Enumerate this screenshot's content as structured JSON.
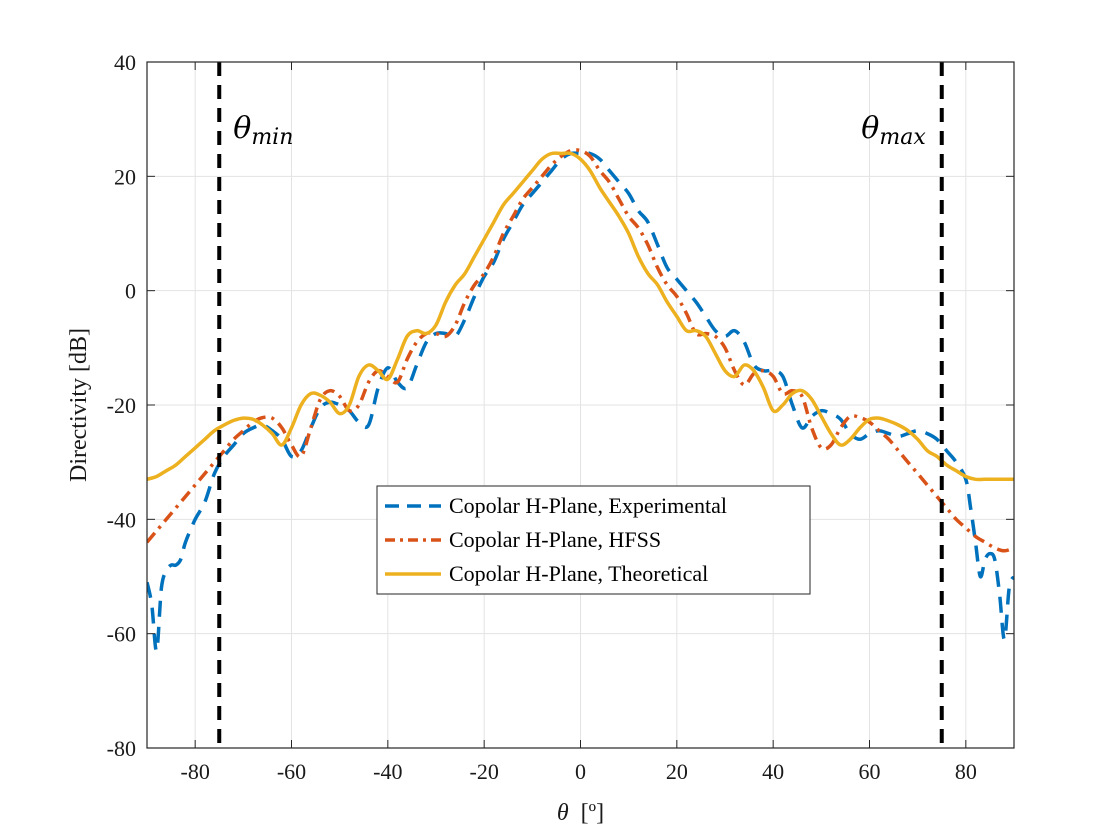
{
  "chart_data": {
    "type": "line",
    "xlabel_symbol": "θ",
    "xlabel_unit": "[º]",
    "ylabel": "Directivity [dB]",
    "xlim": [
      -90,
      90
    ],
    "ylim": [
      -80,
      40
    ],
    "xticks": [
      -80,
      -60,
      -40,
      -20,
      0,
      20,
      40,
      60,
      80
    ],
    "yticks": [
      -80,
      -60,
      -40,
      -20,
      0,
      20,
      40
    ],
    "grid": true,
    "legend_position": "center-bottom",
    "vlines": [
      {
        "x": -75,
        "label_base": "θ",
        "label_sub": "min"
      },
      {
        "x": 75,
        "label_base": "θ",
        "label_sub": "max"
      }
    ],
    "series": [
      {
        "name": "Copolar H-Plane, Experimental",
        "color": "#0072BD",
        "style": "dashed",
        "x": [
          -90,
          -89,
          -88,
          -87,
          -86,
          -85,
          -84,
          -83,
          -82,
          -80,
          -78,
          -76,
          -74,
          -72,
          -70,
          -68,
          -66,
          -64,
          -62,
          -60,
          -58,
          -56,
          -54,
          -52,
          -50,
          -48,
          -46,
          -44,
          -42,
          -40,
          -38,
          -36,
          -34,
          -32,
          -30,
          -28,
          -26,
          -24,
          -22,
          -20,
          -18,
          -16,
          -14,
          -12,
          -10,
          -8,
          -6,
          -4,
          -2,
          0,
          2,
          4,
          6,
          8,
          10,
          12,
          14,
          16,
          18,
          20,
          22,
          24,
          26,
          28,
          30,
          32,
          34,
          36,
          38,
          40,
          42,
          44,
          46,
          48,
          50,
          52,
          54,
          56,
          58,
          60,
          62,
          64,
          66,
          68,
          70,
          72,
          74,
          76,
          78,
          80,
          81,
          82,
          83,
          84,
          85,
          86,
          87,
          88,
          89,
          90
        ],
        "y": [
          -51,
          -55,
          -63,
          -52,
          -49,
          -48,
          -48,
          -47,
          -44,
          -40,
          -37,
          -32,
          -29,
          -27,
          -25,
          -24,
          -23.5,
          -24.5,
          -26,
          -29,
          -28,
          -24,
          -20.5,
          -19.5,
          -20,
          -21,
          -23,
          -23.5,
          -17,
          -13.5,
          -16,
          -17,
          -13,
          -9,
          -7.5,
          -7.5,
          -8,
          -5,
          -1,
          2.5,
          5,
          9,
          12,
          15,
          17,
          19,
          21,
          23,
          24,
          24,
          24,
          23,
          21,
          19,
          17,
          14,
          12,
          8,
          4,
          2,
          0,
          -2,
          -4.5,
          -7,
          -8,
          -7,
          -9,
          -13,
          -14,
          -14,
          -15,
          -20,
          -24,
          -22,
          -21,
          -21.5,
          -22.5,
          -25,
          -26,
          -25,
          -24.5,
          -25,
          -25.5,
          -25,
          -24.5,
          -25,
          -26,
          -28,
          -30,
          -33,
          -38,
          -44,
          -50,
          -47,
          -46,
          -47,
          -53,
          -61,
          -52,
          -50
        ]
      },
      {
        "name": "Copolar H-Plane, HFSS",
        "color": "#D95319",
        "style": "dashdot",
        "x": [
          -90,
          -88,
          -86,
          -84,
          -82,
          -80,
          -78,
          -76,
          -74,
          -72,
          -70,
          -68,
          -66,
          -64,
          -62,
          -60,
          -58,
          -56,
          -54,
          -52,
          -50,
          -48,
          -46,
          -44,
          -42,
          -40,
          -38,
          -36,
          -34,
          -32,
          -30,
          -28,
          -26,
          -24,
          -22,
          -20,
          -18,
          -16,
          -14,
          -12,
          -10,
          -8,
          -6,
          -4,
          -2,
          0,
          2,
          4,
          6,
          8,
          10,
          12,
          14,
          16,
          18,
          20,
          22,
          24,
          26,
          28,
          30,
          32,
          34,
          36,
          38,
          40,
          42,
          44,
          46,
          48,
          50,
          52,
          54,
          56,
          58,
          60,
          62,
          64,
          66,
          68,
          70,
          72,
          74,
          76,
          78,
          80,
          82,
          84,
          86,
          88,
          90
        ],
        "y": [
          -44,
          -42,
          -40,
          -38,
          -36,
          -34,
          -32,
          -30,
          -28,
          -26,
          -24.5,
          -23,
          -22.2,
          -22.3,
          -24,
          -27,
          -29,
          -24,
          -19,
          -17.5,
          -18.5,
          -21,
          -20,
          -16,
          -14,
          -15,
          -16,
          -12,
          -9,
          -7.5,
          -7.5,
          -8,
          -6,
          -2,
          1,
          3,
          6,
          10,
          13,
          16,
          18,
          20,
          22,
          23.5,
          24.5,
          24.5,
          23.5,
          21,
          19,
          16,
          13,
          11,
          8,
          4,
          1,
          -1,
          -4,
          -7.5,
          -7.5,
          -8,
          -10,
          -14,
          -16.5,
          -14.5,
          -14,
          -15,
          -18,
          -17.5,
          -18.5,
          -24,
          -27.5,
          -27,
          -24,
          -22,
          -22.2,
          -23,
          -24.5,
          -26,
          -28,
          -30,
          -32,
          -34,
          -36,
          -38,
          -40,
          -41.5,
          -43,
          -44,
          -45,
          -45.5,
          -45
        ]
      },
      {
        "name": "Copolar H-Plane, Theoretical",
        "color": "#EDB120",
        "style": "solid",
        "x": [
          -90,
          -88,
          -86,
          -84,
          -82,
          -80,
          -78,
          -76,
          -74,
          -72,
          -70,
          -68,
          -66,
          -64,
          -62,
          -60,
          -58,
          -56,
          -54,
          -52,
          -50,
          -48,
          -46,
          -44,
          -42,
          -40,
          -38,
          -36,
          -34,
          -32,
          -30,
          -28,
          -26,
          -24,
          -22,
          -20,
          -18,
          -16,
          -14,
          -12,
          -10,
          -8,
          -6,
          -4,
          -2,
          0,
          2,
          4,
          6,
          8,
          10,
          12,
          14,
          16,
          18,
          20,
          22,
          24,
          26,
          28,
          30,
          32,
          34,
          36,
          38,
          40,
          42,
          44,
          46,
          48,
          50,
          52,
          54,
          56,
          58,
          60,
          62,
          64,
          66,
          68,
          70,
          72,
          74,
          76,
          78,
          80,
          82,
          84,
          86,
          88,
          90
        ],
        "y": [
          -33,
          -32.5,
          -31.5,
          -30.5,
          -29,
          -27.5,
          -26,
          -24.5,
          -23.5,
          -22.7,
          -22.3,
          -22.5,
          -23.5,
          -25,
          -27,
          -24,
          -20,
          -18,
          -18.3,
          -19.5,
          -21.5,
          -20,
          -15,
          -13,
          -14,
          -15.5,
          -12,
          -8,
          -7,
          -7.5,
          -6,
          -2,
          1,
          3,
          6,
          9,
          12,
          15,
          17,
          19,
          21,
          23,
          24,
          24,
          24,
          23,
          21,
          18,
          15.5,
          13,
          10,
          6,
          3,
          1,
          -2,
          -4.5,
          -7,
          -7,
          -8,
          -11,
          -14,
          -15,
          -13,
          -14,
          -17,
          -21,
          -20,
          -18,
          -17.5,
          -19,
          -22,
          -25,
          -27,
          -26,
          -24,
          -22.5,
          -22.3,
          -22.8,
          -23.5,
          -24.5,
          -26,
          -28,
          -29,
          -30.5,
          -31.5,
          -32.5,
          -33,
          -33,
          -33,
          -33,
          -33
        ]
      }
    ]
  }
}
